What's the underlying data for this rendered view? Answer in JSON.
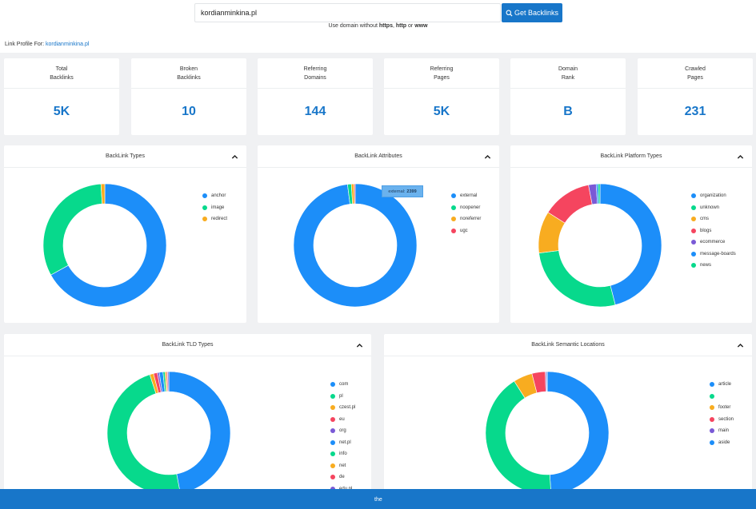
{
  "search": {
    "value": "kordianminkina.pl",
    "button_label": "Get Backlinks",
    "hint_prefix": "Use domain without ",
    "hint_https": "https",
    "hint_sep1": ", ",
    "hint_http": "http",
    "hint_sep2": " or ",
    "hint_www": "www"
  },
  "profile": {
    "label": "Link Profile For:",
    "domain": "kordianminkina.pl"
  },
  "stats": [
    {
      "label": "Total\nBacklinks",
      "value": "5K"
    },
    {
      "label": "Broken\nBacklinks",
      "value": "10"
    },
    {
      "label": "Referring\nDomains",
      "value": "144"
    },
    {
      "label": "Referring\nPages",
      "value": "5K"
    },
    {
      "label": "Domain\nRank",
      "value": "B"
    },
    {
      "label": "Crawled\nPages",
      "value": "231"
    }
  ],
  "cards": [
    {
      "title": "BackLink Types",
      "legend": [
        {
          "label": "anchor",
          "color": "#1c8ef9",
          "pct": 0.67
        },
        {
          "label": "image",
          "color": "#07d98c",
          "pct": 0.32
        },
        {
          "label": "redirect",
          "color": "#f8ac20",
          "pct": 0.01
        }
      ]
    },
    {
      "title": "BackLink Attributes",
      "tooltip": {
        "label": "external:",
        "value": "2399"
      },
      "legend": [
        {
          "label": "external",
          "color": "#1c8ef9",
          "pct": 0.98
        },
        {
          "label": "noopener",
          "color": "#07d98c",
          "pct": 0.01
        },
        {
          "label": "noreferrer",
          "color": "#f8ac20",
          "pct": 0.007
        },
        {
          "label": "ugc",
          "color": "#f5455f",
          "pct": 0.003
        }
      ]
    },
    {
      "title": "BackLink Platform Types",
      "legend": [
        {
          "label": "organization",
          "color": "#1c8ef9",
          "pct": 0.46
        },
        {
          "label": "unknown",
          "color": "#07d98c",
          "pct": 0.27
        },
        {
          "label": "cms",
          "color": "#f8ac20",
          "pct": 0.11
        },
        {
          "label": "blogs",
          "color": "#f5455f",
          "pct": 0.13
        },
        {
          "label": "ecommerce",
          "color": "#7a5ad6",
          "pct": 0.02
        },
        {
          "label": "message-boards",
          "color": "#1c8ef9",
          "pct": 0.005
        },
        {
          "label": "news",
          "color": "#07d98c",
          "pct": 0.005
        }
      ]
    },
    {
      "title": "BackLink TLD Types",
      "legend": [
        {
          "label": "com",
          "color": "#1c8ef9",
          "pct": 0.47
        },
        {
          "label": "pl",
          "color": "#07d98c",
          "pct": 0.48
        },
        {
          "label": "czest.pl",
          "color": "#f8ac20",
          "pct": 0.01
        },
        {
          "label": "eu",
          "color": "#f5455f",
          "pct": 0.01
        },
        {
          "label": "org",
          "color": "#7a5ad6",
          "pct": 0.005
        },
        {
          "label": "net.pl",
          "color": "#1c8ef9",
          "pct": 0.01
        },
        {
          "label": "info",
          "color": "#07d98c",
          "pct": 0.005
        },
        {
          "label": "net",
          "color": "#f8ac20",
          "pct": 0.004
        },
        {
          "label": "de",
          "color": "#f5455f",
          "pct": 0.003
        },
        {
          "label": "edu.pl",
          "color": "#7a5ad6",
          "pct": 0.003
        }
      ]
    },
    {
      "title": "BackLink Semantic Locations",
      "legend": [
        {
          "label": "article",
          "color": "#1c8ef9",
          "pct": 0.49
        },
        {
          "label": "",
          "color": "#07d98c",
          "pct": 0.42
        },
        {
          "label": "footer",
          "color": "#f8ac20",
          "pct": 0.05
        },
        {
          "label": "section",
          "color": "#f5455f",
          "pct": 0.035
        },
        {
          "label": "main",
          "color": "#7a5ad6",
          "pct": 0.003
        },
        {
          "label": "aside",
          "color": "#1c8ef9",
          "pct": 0.002
        }
      ]
    }
  ],
  "footer": {
    "text": "the"
  }
}
